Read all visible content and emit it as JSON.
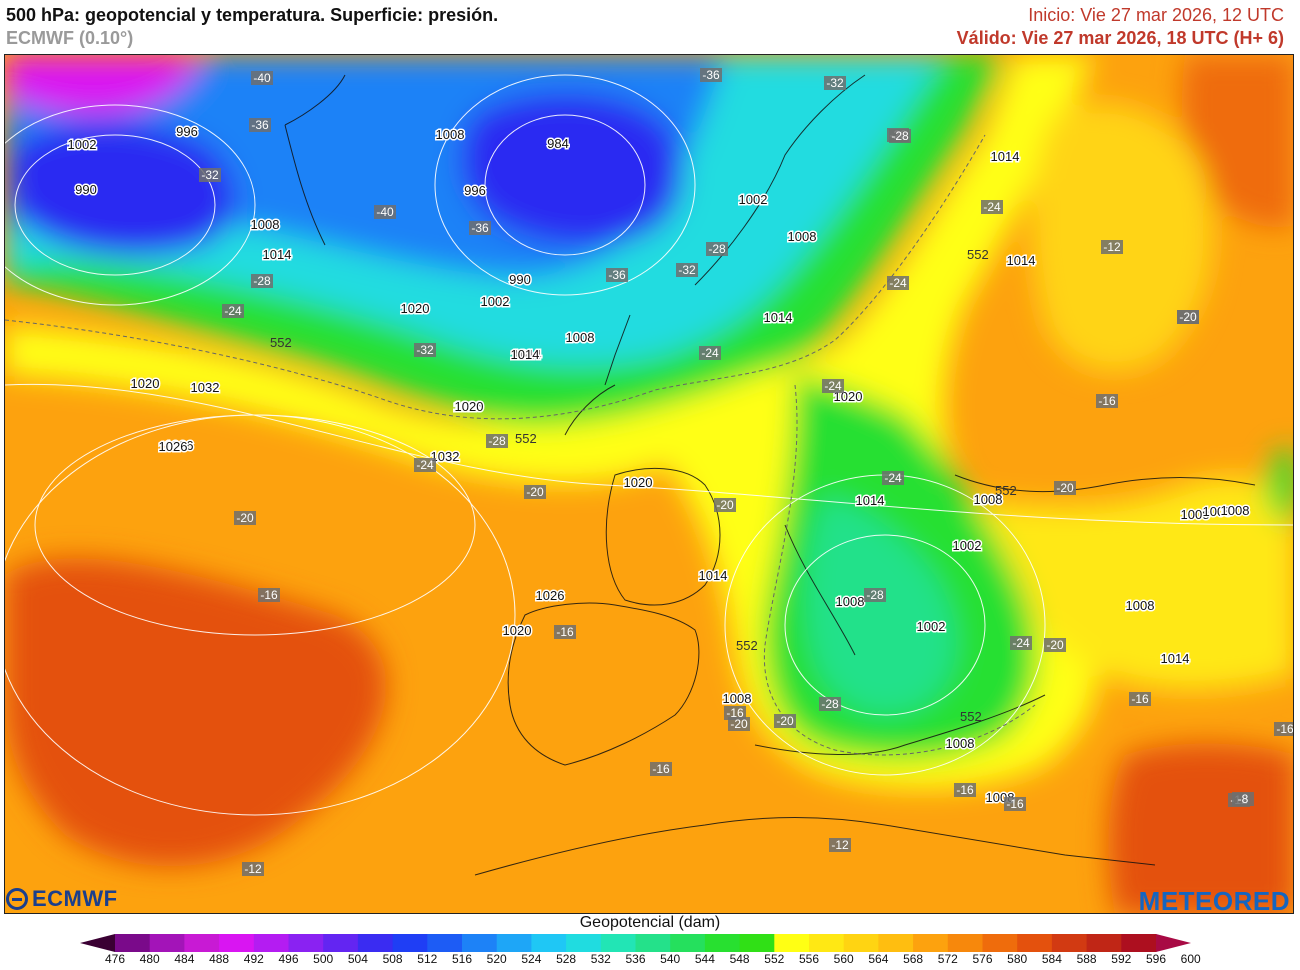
{
  "header": {
    "title": "500 hPa: geopotencial y temperatura. Superficie: presión.",
    "model": "ECMWF (0.10°)",
    "init": "Inicio: Vie 27 mar 2026, 12 UTC",
    "valid": "Válido: Vie 27 mar 2026, 18 UTC (H+ 6)"
  },
  "legend": {
    "title": "Geopotencial (dam)",
    "ticks": [
      "476",
      "480",
      "484",
      "488",
      "492",
      "496",
      "500",
      "504",
      "508",
      "512",
      "516",
      "520",
      "524",
      "528",
      "532",
      "536",
      "540",
      "544",
      "548",
      "552",
      "556",
      "560",
      "564",
      "568",
      "572",
      "576",
      "580",
      "584",
      "588",
      "592",
      "596",
      "600"
    ],
    "colors": [
      "#3a0033",
      "#7a0a8a",
      "#a314b8",
      "#c81ad4",
      "#d915f2",
      "#b41cf2",
      "#8a22f2",
      "#6325f2",
      "#3a2cf2",
      "#1f3ef5",
      "#1d5cf5",
      "#1d82f7",
      "#1ea6f7",
      "#1fc7f5",
      "#20dce0",
      "#22e5b5",
      "#24e18a",
      "#25e05d",
      "#28e030",
      "#30e016",
      "#ffff14",
      "#ffe814",
      "#ffd412",
      "#ffbe10",
      "#fda20e",
      "#f7880c",
      "#ef6c0c",
      "#e4510d",
      "#d23a12",
      "#c02616",
      "#ad0f1f",
      "#a80a44"
    ]
  },
  "map": {
    "pressure_labels": [
      "1002",
      "990",
      "996",
      "1008",
      "1014",
      "1020",
      "1026",
      "1032",
      "984",
      "990",
      "996",
      "1002",
      "1008",
      "1014",
      "1020",
      "1026",
      "1032",
      "1020",
      "1026",
      "1020",
      "1014",
      "1008",
      "1002",
      "1014",
      "1008",
      "1014",
      "1002",
      "1002",
      "1008",
      "1014",
      "1008",
      "1014",
      "1020",
      "1026",
      "1020",
      "1014",
      "1008",
      "1008",
      "1008",
      "1008",
      "1014",
      "1008",
      "1008",
      "1008"
    ],
    "temp_labels": [
      "-40",
      "-36",
      "-32",
      "-40",
      "-36",
      "-36",
      "-32",
      "-28",
      "-28",
      "-32",
      "-28",
      "-24",
      "-24",
      "-24",
      "-28",
      "-24",
      "-24",
      "-24",
      "-20",
      "-20",
      "-20",
      "-16",
      "-16",
      "-16",
      "-20",
      "-16",
      "-20",
      "-28",
      "-28",
      "-24",
      "-20",
      "-16",
      "-16",
      "-16",
      "-16",
      "-16",
      "-12",
      "-12",
      "-12",
      "-8",
      "-12",
      "-20",
      "-16",
      "-20",
      "-36",
      "-32",
      "-28",
      "-24"
    ],
    "contour_labels": [
      "552",
      "552",
      "552",
      "552",
      "552",
      "552"
    ],
    "colors": {
      "cold_core": "#2b2cf2",
      "blue": "#1d82f7",
      "cyan": "#20dce0",
      "green": "#28e030",
      "yellow": "#ffff14",
      "orange": "#fda20e",
      "red": "#e4510d",
      "magenta": "#d915f2"
    }
  },
  "logos": {
    "ecmwf": "ECMWF",
    "meteored": "METEORED"
  }
}
